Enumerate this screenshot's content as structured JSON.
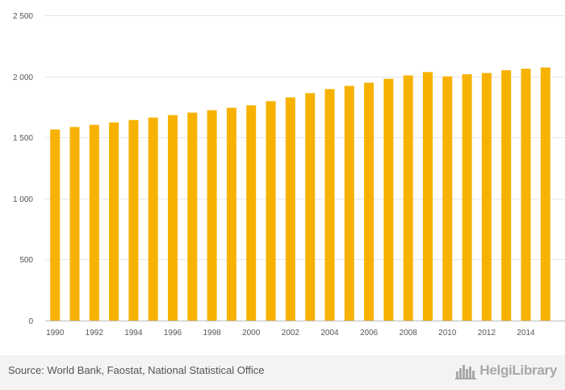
{
  "chart_data": {
    "type": "bar",
    "title": "",
    "xlabel": "",
    "ylabel": "",
    "categories": [
      "1990",
      "1991",
      "1992",
      "1993",
      "1994",
      "1995",
      "1996",
      "1997",
      "1998",
      "1999",
      "2000",
      "2001",
      "2002",
      "2003",
      "2004",
      "2005",
      "2006",
      "2007",
      "2008",
      "2009",
      "2010",
      "2011",
      "2012",
      "2013",
      "2014",
      "2015"
    ],
    "x_tick_labels": [
      "1990",
      "1992",
      "1994",
      "1996",
      "1998",
      "2000",
      "2002",
      "2004",
      "2006",
      "2008",
      "2010",
      "2012",
      "2014"
    ],
    "values": [
      1565,
      1585,
      1603,
      1623,
      1642,
      1663,
      1683,
      1703,
      1723,
      1743,
      1763,
      1797,
      1828,
      1863,
      1896,
      1922,
      1948,
      1980,
      2008,
      2035,
      2000,
      2017,
      2028,
      2050,
      2063,
      2073
    ],
    "y_ticks": [
      0,
      500,
      1000,
      1500,
      2000,
      2500
    ],
    "y_tick_labels": [
      "0",
      "500",
      "1 000",
      "1 500",
      "2 000",
      "2 500"
    ],
    "ylim": [
      0,
      2500
    ],
    "grid": true,
    "legend": "none",
    "bar_color": "#f7b200"
  },
  "footer": {
    "source": "Source: World Bank, Faostat, National Statistical Office",
    "brand": "HelgiLibrary"
  }
}
